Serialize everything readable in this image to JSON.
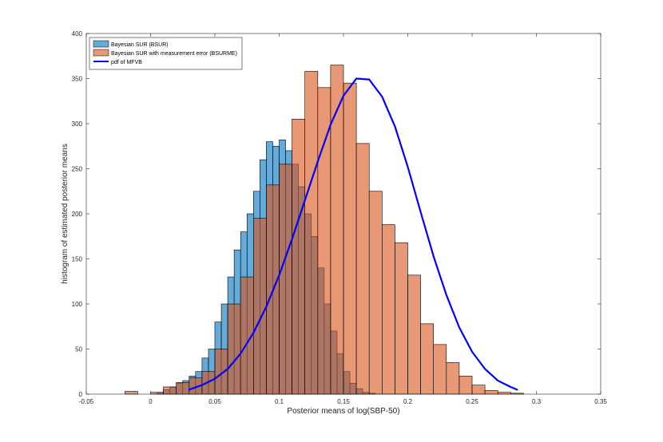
{
  "chart_data": {
    "type": "bar",
    "title": "",
    "xlabel": "Posterior means of log(SBP-50)",
    "ylabel": "histogram of estimated posterior means",
    "xlim": [
      -0.05,
      0.35
    ],
    "ylim": [
      0,
      400
    ],
    "xticks": [
      -0.05,
      0,
      0.05,
      0.1,
      0.15,
      0.2,
      0.25,
      0.3,
      0.35
    ],
    "xtick_labels": [
      "-0.05",
      "0",
      "0.05",
      "0.1",
      "0.15",
      "0.2",
      "0.25",
      "0.3",
      "0.35"
    ],
    "yticks": [
      0,
      50,
      100,
      150,
      200,
      250,
      300,
      350,
      400
    ],
    "ytick_labels": [
      "0",
      "50",
      "100",
      "150",
      "200",
      "250",
      "300",
      "350",
      "400"
    ],
    "grid": false,
    "legend_position": "top-left",
    "series": [
      {
        "name": "Bayesian SUR (BSUR)",
        "kind": "histogram",
        "color": "#0072BD",
        "bin_edges": [
          0.005,
          0.01,
          0.015,
          0.02,
          0.025,
          0.03,
          0.035,
          0.04,
          0.045,
          0.05,
          0.055,
          0.06,
          0.065,
          0.07,
          0.075,
          0.08,
          0.085,
          0.09,
          0.095,
          0.1,
          0.105,
          0.11,
          0.115,
          0.12,
          0.125,
          0.13,
          0.135,
          0.14,
          0.145,
          0.15,
          0.155,
          0.16,
          0.165,
          0.17,
          0.175
        ],
        "counts": [
          2,
          5,
          8,
          12,
          15,
          20,
          25,
          40,
          50,
          80,
          100,
          130,
          160,
          180,
          200,
          225,
          260,
          280,
          275,
          282,
          270,
          255,
          230,
          200,
          175,
          140,
          100,
          70,
          45,
          25,
          12,
          6,
          2,
          1
        ]
      },
      {
        "name": "Bayesian SUR with measurement error (BSURME)",
        "kind": "histogram",
        "color": "#D95319",
        "bin_edges": [
          -0.02,
          -0.01,
          0,
          0.01,
          0.02,
          0.03,
          0.04,
          0.05,
          0.06,
          0.07,
          0.08,
          0.09,
          0.1,
          0.11,
          0.12,
          0.13,
          0.14,
          0.15,
          0.16,
          0.17,
          0.18,
          0.19,
          0.2,
          0.21,
          0.22,
          0.23,
          0.24,
          0.25,
          0.26,
          0.27,
          0.28,
          0.29
        ],
        "counts": [
          3,
          0,
          2,
          8,
          13,
          18,
          25,
          50,
          100,
          130,
          195,
          232,
          255,
          305,
          358,
          340,
          365,
          345,
          278,
          225,
          188,
          168,
          132,
          78,
          55,
          35,
          20,
          10,
          4,
          2,
          1
        ]
      },
      {
        "name": "pdf of MFVB",
        "kind": "line",
        "color": "#0000FF",
        "x": [
          0.03,
          0.04,
          0.05,
          0.06,
          0.07,
          0.08,
          0.09,
          0.1,
          0.11,
          0.12,
          0.13,
          0.14,
          0.15,
          0.16,
          0.17,
          0.18,
          0.19,
          0.2,
          0.21,
          0.22,
          0.23,
          0.24,
          0.25,
          0.26,
          0.27,
          0.28,
          0.285
        ],
        "y": [
          5,
          10,
          17,
          28,
          45,
          68,
          97,
          132,
          172,
          215,
          258,
          299,
          331,
          350,
          349,
          330,
          297,
          252,
          202,
          153,
          110,
          74,
          47,
          28,
          15,
          8,
          5
        ]
      }
    ]
  }
}
